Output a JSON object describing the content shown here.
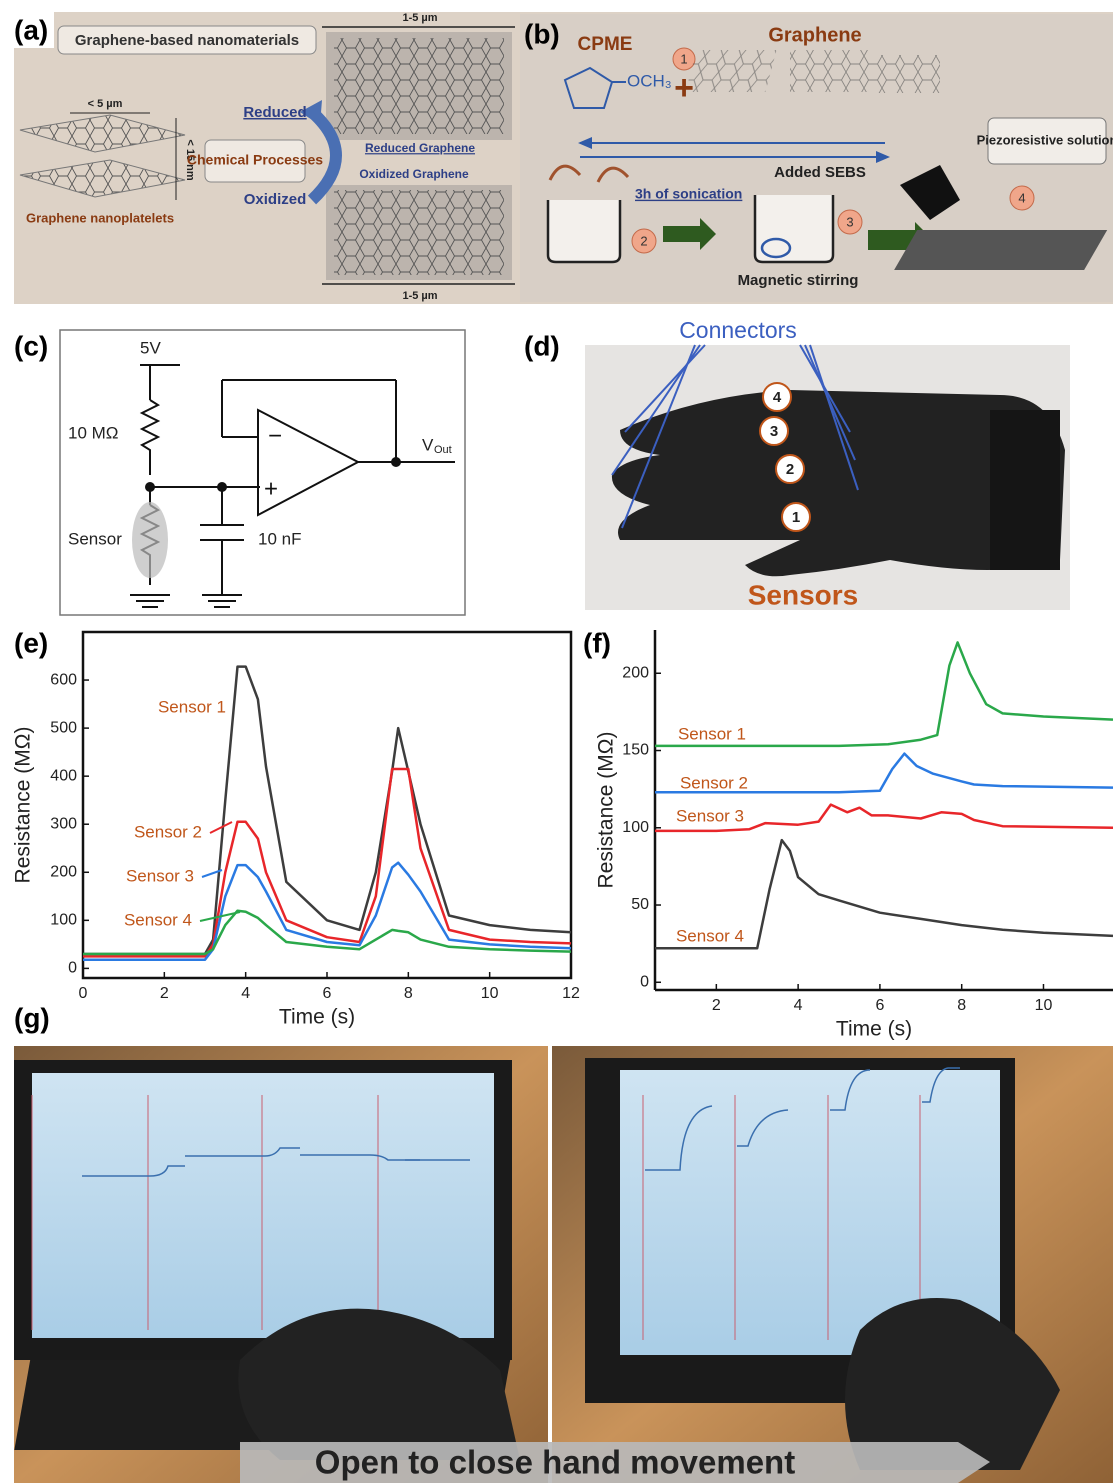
{
  "panels": {
    "a": {
      "label": "(a)",
      "box_title": "Graphene-based nanomaterials",
      "width_top": "1-5 µm",
      "platelet_width": "< 5 µm",
      "platelet_thickness": "< 15 nm",
      "reduced": "Reduced",
      "chemical": "Chemical Processes",
      "oxidized": "Oxidized",
      "reduced_graphene": "Reduced Graphene",
      "oxidized_graphene": "Oxidized Graphene",
      "nanoplatelets": "Graphene nanoplatelets",
      "width_bottom": "1-5 µm"
    },
    "b": {
      "label": "(b)",
      "solvent": "CPME",
      "formula": "OCH₃",
      "step1": "1",
      "graphene": "Graphene",
      "piezo": "Piezoresistive solution",
      "sebs": "Added SEBS",
      "sonication": "3h of sonication",
      "step2": "2",
      "step3": "3",
      "step4": "4",
      "stirring": "Magnetic stirring"
    },
    "c": {
      "label": "(c)",
      "supply": "5V",
      "resistor": "10 MΩ",
      "sensor": "Sensor",
      "capacitor": "10 nF",
      "vout": "V",
      "vout_sub": "Out"
    },
    "d": {
      "label": "(d)",
      "connectors": "Connectors",
      "fingers": [
        "1",
        "2",
        "3",
        "4"
      ],
      "sensors": "Sensors"
    },
    "g": {
      "label": "(g)",
      "banner": "Open to close hand movement"
    }
  },
  "chart_data": [
    {
      "type": "line",
      "label": "(e)",
      "ylabel": "Resistance (MΩ)",
      "xlabel": "Time (s)",
      "xlim": [
        0,
        12
      ],
      "xticks": [
        0,
        2,
        4,
        6,
        8,
        10,
        12
      ],
      "ylim": [
        -20,
        700
      ],
      "yticks": [
        0,
        100,
        200,
        300,
        400,
        500,
        600
      ],
      "series": [
        {
          "name": "Sensor 1",
          "color": "#3d3d3d",
          "x": [
            0,
            1,
            2,
            3,
            3.2,
            3.5,
            3.8,
            4,
            4.3,
            4.5,
            5,
            6,
            6.8,
            7.2,
            7.6,
            7.75,
            8,
            8.3,
            9,
            10,
            11,
            12
          ],
          "values": [
            30,
            30,
            30,
            30,
            60,
            350,
            628,
            628,
            560,
            420,
            180,
            100,
            80,
            200,
            410,
            500,
            410,
            300,
            110,
            90,
            80,
            75
          ]
        },
        {
          "name": "Sensor 2",
          "color": "#e8262a",
          "x": [
            0,
            1,
            2,
            3,
            3.2,
            3.5,
            3.8,
            4,
            4.3,
            4.5,
            5,
            6,
            6.8,
            7.2,
            7.6,
            7.75,
            8,
            8.3,
            9,
            10,
            11,
            12
          ],
          "values": [
            25,
            25,
            25,
            25,
            50,
            200,
            305,
            305,
            270,
            200,
            100,
            65,
            55,
            150,
            415,
            415,
            415,
            250,
            80,
            60,
            55,
            52
          ]
        },
        {
          "name": "Sensor 3",
          "color": "#2a7ae2",
          "x": [
            0,
            1,
            2,
            3,
            3.2,
            3.5,
            3.8,
            4,
            4.3,
            4.5,
            5,
            6,
            6.8,
            7.2,
            7.6,
            7.75,
            8,
            8.3,
            9,
            10,
            11,
            12
          ],
          "values": [
            18,
            18,
            18,
            18,
            40,
            150,
            215,
            215,
            190,
            160,
            80,
            55,
            48,
            110,
            210,
            220,
            195,
            160,
            60,
            50,
            45,
            42
          ]
        },
        {
          "name": "Sensor 4",
          "color": "#2aa84a",
          "x": [
            0,
            1,
            2,
            3,
            3.2,
            3.5,
            3.8,
            4,
            4.3,
            4.5,
            5,
            6,
            6.8,
            7.2,
            7.6,
            7.75,
            8,
            8.3,
            9,
            10,
            11,
            12
          ],
          "values": [
            30,
            30,
            30,
            30,
            40,
            90,
            120,
            118,
            105,
            90,
            55,
            45,
            40,
            60,
            80,
            78,
            75,
            60,
            45,
            40,
            37,
            35
          ]
        }
      ]
    },
    {
      "type": "line",
      "label": "(f)",
      "ylabel": "Resistance (MΩ)",
      "xlabel": "Time (s)",
      "xlim": [
        0.5,
        11.7
      ],
      "xticks": [
        2,
        4,
        6,
        8,
        10
      ],
      "ylim": [
        -5,
        228
      ],
      "yticks": [
        0,
        50,
        100,
        150,
        200
      ],
      "series": [
        {
          "name": "Sensor 1",
          "color": "#3d3d3d",
          "x": [
            0.5,
            2,
            3,
            3.3,
            3.6,
            3.8,
            4,
            4.5,
            5,
            6,
            7,
            8,
            9,
            10,
            11.7
          ],
          "values": [
            22,
            22,
            22,
            60,
            92,
            85,
            68,
            57,
            53,
            45,
            41,
            37,
            34,
            32,
            30
          ]
        },
        {
          "name": "Sensor 2",
          "color": "#e8262a",
          "x": [
            0.5,
            2,
            2.8,
            3.2,
            4,
            4.5,
            4.8,
            5.2,
            5.5,
            5.8,
            6.2,
            7,
            7.5,
            8,
            8.3,
            9,
            11.7
          ],
          "values": [
            98,
            98,
            99,
            103,
            102,
            104,
            115,
            110,
            113,
            108,
            108,
            106,
            110,
            109,
            105,
            101,
            100
          ]
        },
        {
          "name": "Sensor 3",
          "color": "#2a7ae2",
          "x": [
            0.5,
            5,
            6,
            6.3,
            6.6,
            6.9,
            7.3,
            8,
            8.3,
            9,
            11.7
          ],
          "values": [
            123,
            123,
            124,
            138,
            148,
            140,
            135,
            130,
            128,
            127,
            126
          ]
        },
        {
          "name": "Sensor 4",
          "color": "#2aa84a",
          "x": [
            0.5,
            5,
            6.2,
            7,
            7.4,
            7.7,
            7.9,
            8.2,
            8.6,
            9,
            10,
            11.7
          ],
          "values": [
            153,
            153,
            154,
            157,
            160,
            205,
            220,
            200,
            180,
            174,
            172,
            170
          ]
        }
      ]
    }
  ]
}
